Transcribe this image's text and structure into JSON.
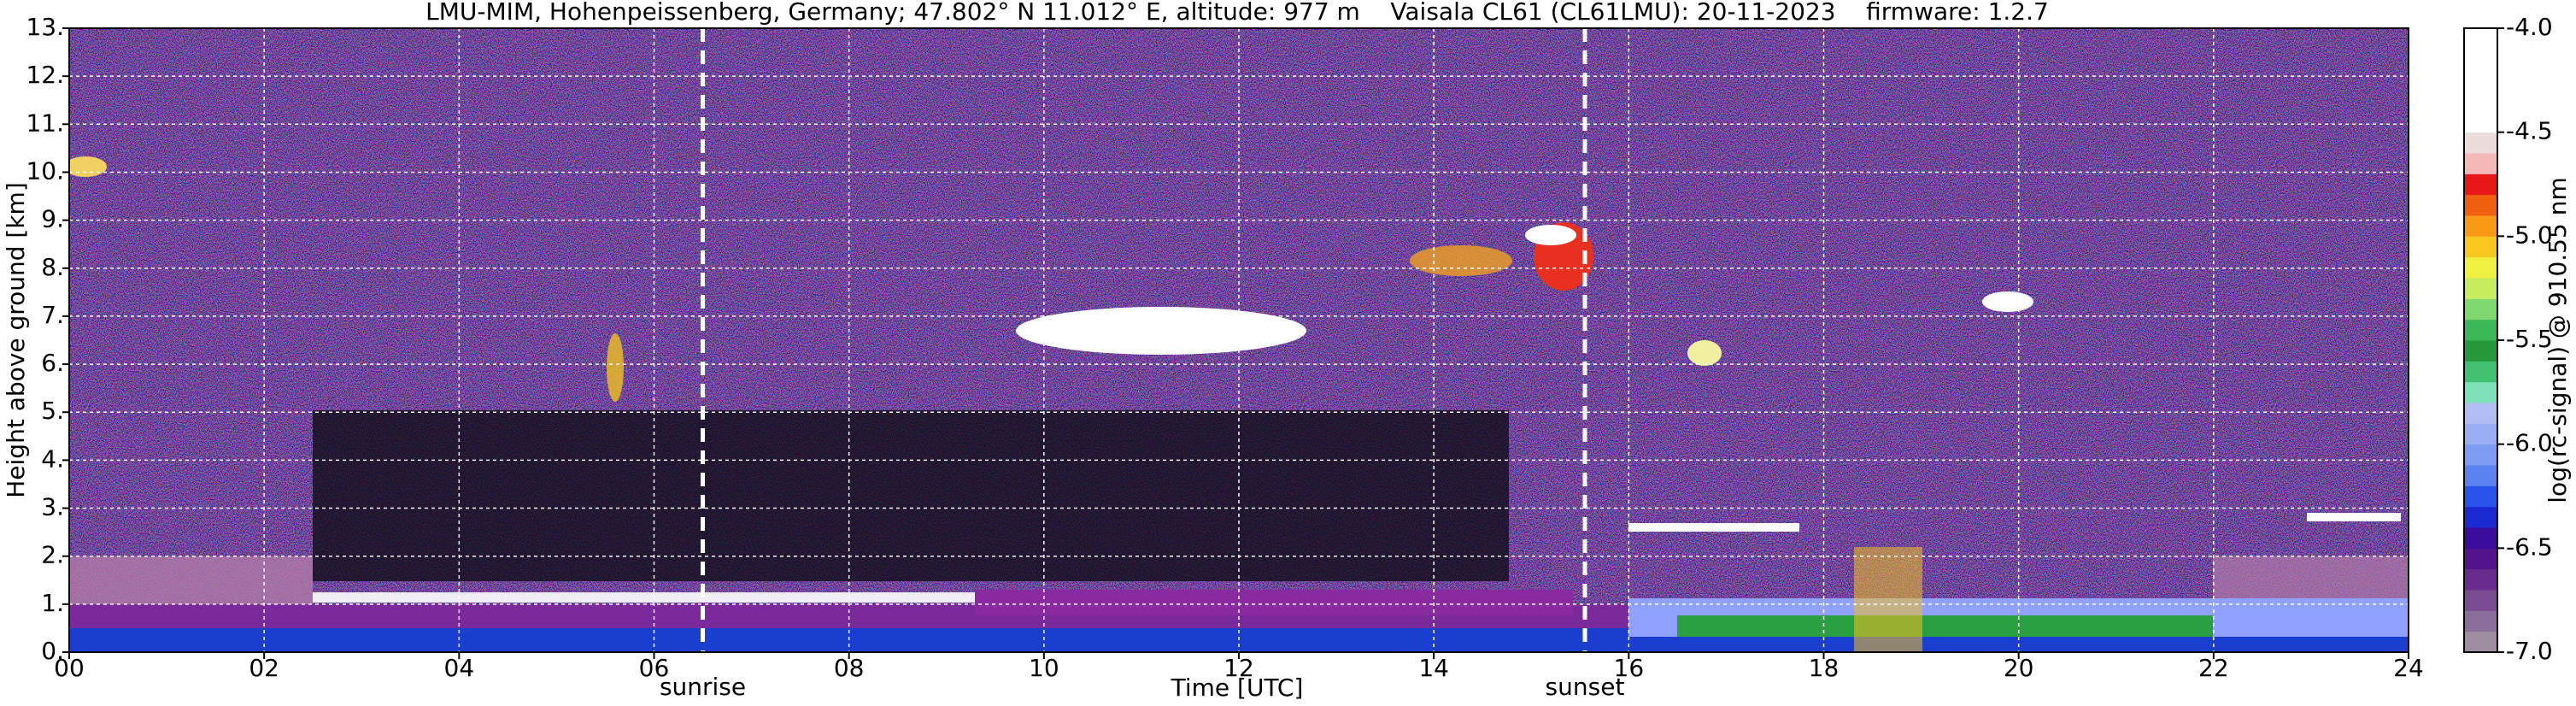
{
  "chart_data": {
    "type": "heatmap",
    "title": "LMU-MIM, Hohenpeissenberg, Germany; 47.802° N 11.012° E, altitude: 977 m    Vaisala CL61 (CL61LMU): 20-11-2023    firmware: 1.2.7",
    "x_label": "Time [UTC]",
    "y_label": "Height above ground [km]",
    "xlim": [
      0,
      24
    ],
    "xticks": [
      {
        "value": 0,
        "label": "00"
      },
      {
        "value": 2,
        "label": "02"
      },
      {
        "value": 4,
        "label": "04"
      },
      {
        "value": 6,
        "label": "06"
      },
      {
        "value": 8,
        "label": "08"
      },
      {
        "value": 10,
        "label": "10"
      },
      {
        "value": 12,
        "label": "12"
      },
      {
        "value": 14,
        "label": "14"
      },
      {
        "value": 16,
        "label": "16"
      },
      {
        "value": 18,
        "label": "18"
      },
      {
        "value": 20,
        "label": "20"
      },
      {
        "value": 22,
        "label": "22"
      },
      {
        "value": 24,
        "label": "24"
      }
    ],
    "ylim": [
      0,
      13
    ],
    "yticks": [
      {
        "value": 0,
        "label": "0."
      },
      {
        "value": 1,
        "label": "1."
      },
      {
        "value": 2,
        "label": "2."
      },
      {
        "value": 3,
        "label": "3."
      },
      {
        "value": 4,
        "label": "4."
      },
      {
        "value": 5,
        "label": "5."
      },
      {
        "value": 6,
        "label": "6."
      },
      {
        "value": 7,
        "label": "7."
      },
      {
        "value": 8,
        "label": "8."
      },
      {
        "value": 9,
        "label": "9."
      },
      {
        "value": 10,
        "label": "10."
      },
      {
        "value": 11,
        "label": "11."
      },
      {
        "value": 12,
        "label": "12."
      },
      {
        "value": 13,
        "label": "13."
      }
    ],
    "grid": true,
    "colorbar": {
      "label": "log(rc-signal) @ 910.55 nm",
      "lim": [
        -7.0,
        -4.0
      ],
      "ticks": [
        {
          "value": -7.0,
          "label": "-7.0"
        },
        {
          "value": -6.5,
          "label": "-6.5"
        },
        {
          "value": -6.0,
          "label": "-6.0"
        },
        {
          "value": -5.5,
          "label": "-5.5"
        },
        {
          "value": -5.0,
          "label": "-5.0"
        },
        {
          "value": -4.5,
          "label": "-4.5"
        },
        {
          "value": -4.0,
          "label": "-4.0"
        }
      ],
      "colors": [
        "#9e8ca0",
        "#8c6e9c",
        "#7a4c92",
        "#6a2c8c",
        "#52148a",
        "#3c0c9c",
        "#1c28d0",
        "#2a52ec",
        "#5a82f0",
        "#7d9cf2",
        "#9aaef2",
        "#b4bcf4",
        "#7ee0b8",
        "#40c070",
        "#24983a",
        "#3cb858",
        "#80d870",
        "#c8ec60",
        "#f0f040",
        "#f8c820",
        "#f89a18",
        "#f06010",
        "#e81818",
        "#f4b8b8",
        "#ecdcdc",
        "#ffffff",
        "#ffffff",
        "#ffffff",
        "#ffffff",
        "#ffffff"
      ]
    },
    "annotations": [
      {
        "text": "sunrise",
        "x": 6.5
      },
      {
        "text": "sunset",
        "x": 15.55
      }
    ]
  }
}
